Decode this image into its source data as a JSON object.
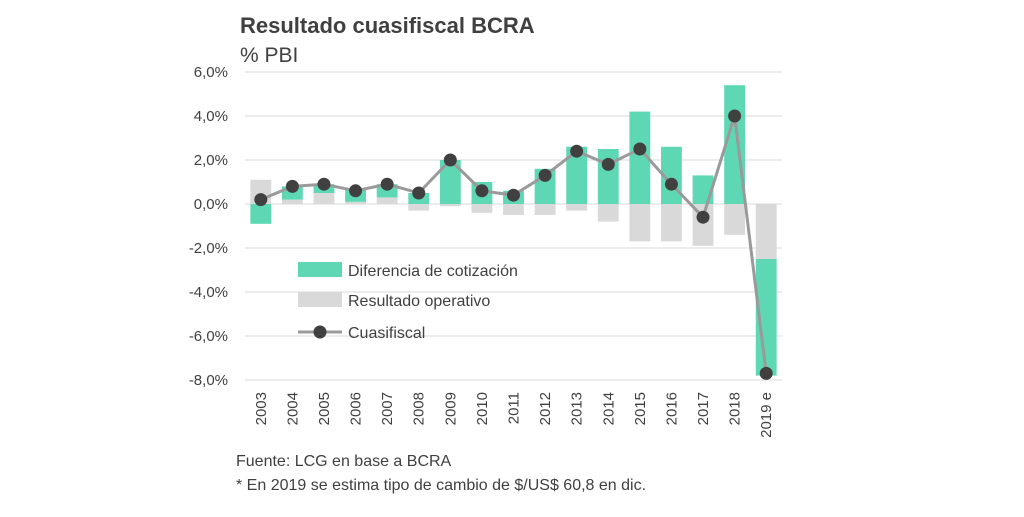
{
  "title": "Resultado cuasifiscal BCRA",
  "subtitle": "% PBI",
  "footnotes": [
    "Fuente: LCG en base a BCRA",
    "* En 2019 se estima tipo de cambio de $/US$ 60,8 en dic."
  ],
  "colors": {
    "diferencia": "#5ed8b4",
    "operativo": "#d9d9d9",
    "cuasifiscal_line": "#9a9a9a",
    "cuasifiscal_marker": "#404040",
    "grid": "#d9d9d9"
  },
  "chart_data": {
    "type": "bar",
    "stacked": true,
    "title": "Resultado cuasifiscal BCRA",
    "ylabel": "% PBI",
    "categories": [
      "2003",
      "2004",
      "2005",
      "2006",
      "2007",
      "2008",
      "2009",
      "2010",
      "2011",
      "2012",
      "2013",
      "2014",
      "2015",
      "2016",
      "2017",
      "2018",
      "2019 e"
    ],
    "ylim": [
      -8,
      6
    ],
    "yticks": [
      6,
      4,
      2,
      0,
      -2,
      -4,
      -6,
      -8
    ],
    "ytick_labels": [
      "6,0%",
      "4,0%",
      "2,0%",
      "0,0%",
      "-2,0%",
      "-4,0%",
      "-6,0%",
      "-8,0%"
    ],
    "grid": true,
    "legend_position": "bottom-left",
    "series": [
      {
        "name": "Diferencia de cotización",
        "kind": "bar",
        "values": [
          -0.9,
          0.6,
          0.4,
          0.6,
          0.6,
          0.5,
          2.0,
          1.0,
          0.6,
          1.6,
          2.6,
          2.5,
          4.2,
          2.6,
          1.3,
          5.4,
          -5.3
        ]
      },
      {
        "name": "Resultado operativo",
        "kind": "bar",
        "values": [
          1.1,
          0.2,
          0.5,
          0.1,
          0.3,
          -0.3,
          -0.1,
          -0.4,
          -0.5,
          -0.5,
          -0.3,
          -0.8,
          -1.7,
          -1.7,
          -1.9,
          -1.4,
          -2.5
        ]
      },
      {
        "name": "Cuasifiscal",
        "kind": "line",
        "values": [
          0.2,
          0.8,
          0.9,
          0.6,
          0.9,
          0.5,
          2.0,
          0.6,
          0.4,
          1.3,
          2.4,
          1.8,
          2.5,
          0.9,
          -0.6,
          4.0,
          -7.7
        ]
      }
    ]
  }
}
